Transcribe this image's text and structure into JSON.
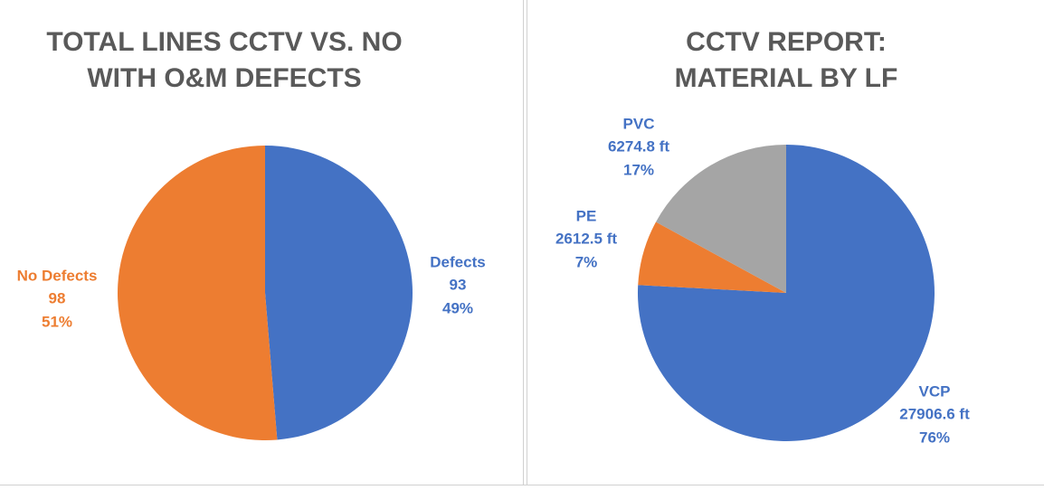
{
  "chart_data": [
    {
      "type": "pie",
      "title": [
        "TOTAL LINES CCTV VS. NO",
        "WITH O&M DEFECTS"
      ],
      "categories": [
        "Defects",
        "No Defects"
      ],
      "values": [
        93,
        98
      ],
      "percents": [
        {
          "value": 49,
          "label": "49%"
        },
        {
          "value": 51,
          "label": "51%"
        }
      ],
      "colors": [
        "#4472c4",
        "#ed7d31"
      ],
      "label_colors": [
        "#4472c4",
        "#ed7d31"
      ]
    },
    {
      "type": "pie",
      "title": [
        "CCTV REPORT:",
        "MATERIAL BY LF"
      ],
      "categories": [
        "VCP",
        "PE",
        "PVC"
      ],
      "values": [
        27906.6,
        2612.5,
        6274.8
      ],
      "value_labels": [
        "27906.6 ft",
        "2612.5 ft",
        "6274.8 ft"
      ],
      "percents": [
        {
          "value": 76,
          "label": "76%"
        },
        {
          "value": 7,
          "label": "7%"
        },
        {
          "value": 17,
          "label": "17%"
        }
      ],
      "colors": [
        "#4472c4",
        "#ed7d31",
        "#a5a5a5"
      ],
      "label_colors": [
        "#4472c4",
        "#4472c4",
        "#4472c4"
      ]
    }
  ]
}
